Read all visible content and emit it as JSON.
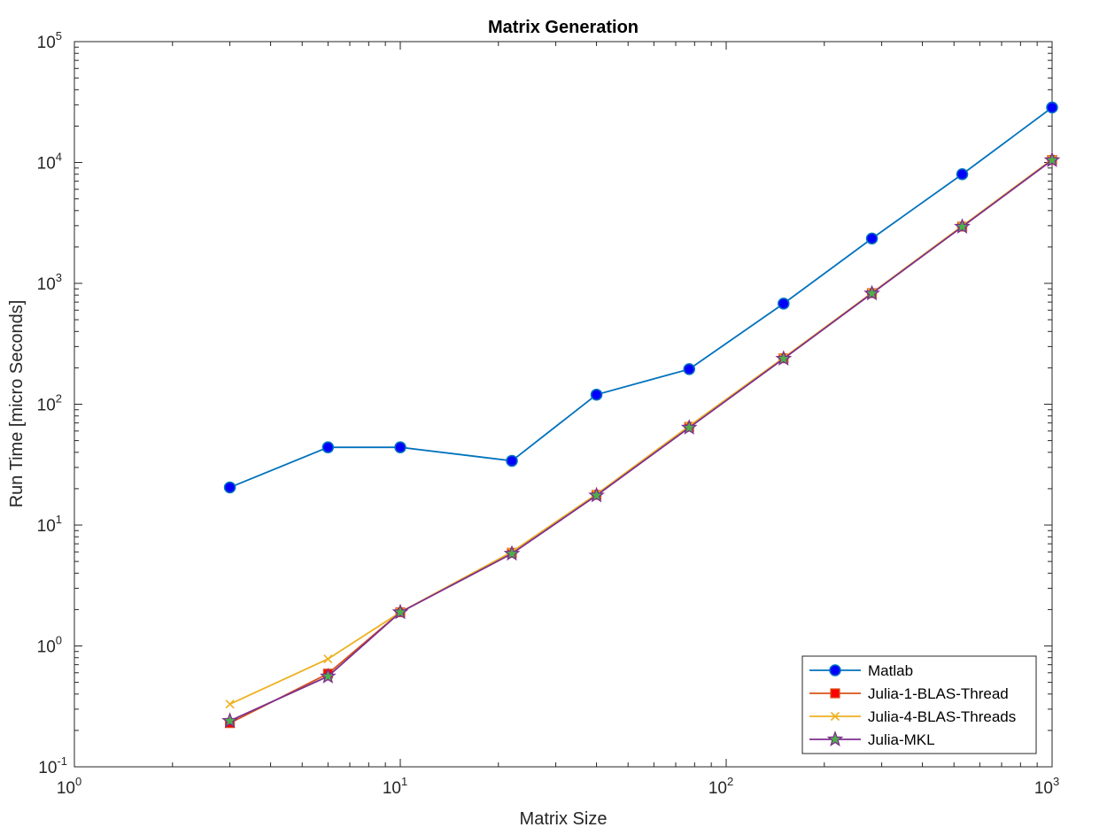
{
  "chart_data": {
    "type": "line",
    "title": "Matrix Generation",
    "xlabel": "Matrix Size",
    "ylabel": "Run Time  [micro Seconds]",
    "xscale": "log",
    "yscale": "log",
    "xlim": [
      1,
      1000
    ],
    "ylim": [
      0.1,
      100000
    ],
    "x_ticks": [
      {
        "value": 1,
        "base": "10",
        "exp": "0"
      },
      {
        "value": 10,
        "base": "10",
        "exp": "1"
      },
      {
        "value": 100,
        "base": "10",
        "exp": "2"
      },
      {
        "value": 1000,
        "base": "10",
        "exp": "3"
      }
    ],
    "y_ticks": [
      {
        "value": 0.1,
        "base": "10",
        "exp": "-1"
      },
      {
        "value": 1,
        "base": "10",
        "exp": "0"
      },
      {
        "value": 10,
        "base": "10",
        "exp": "1"
      },
      {
        "value": 100,
        "base": "10",
        "exp": "2"
      },
      {
        "value": 1000,
        "base": "10",
        "exp": "3"
      },
      {
        "value": 10000,
        "base": "10",
        "exp": "4"
      },
      {
        "value": 100000,
        "base": "10",
        "exp": "5"
      }
    ],
    "grid": false,
    "legend_position": "bottom-right",
    "x": [
      3,
      6,
      10,
      22,
      40,
      77,
      150,
      280,
      530,
      1000
    ],
    "series": [
      {
        "name": "Matlab",
        "color": "#0072BD",
        "marker": "circle",
        "marker_face": "#0000ff",
        "values": [
          20.5,
          44,
          44,
          34,
          120,
          195,
          680,
          2350,
          8000,
          28500
        ]
      },
      {
        "name": "Julia-1-BLAS-Thread",
        "color": "#D95319",
        "marker": "square",
        "marker_face": "#ff0000",
        "values": [
          0.23,
          0.59,
          1.9,
          5.9,
          17.8,
          65,
          240,
          830,
          2950,
          10500
        ]
      },
      {
        "name": "Julia-4-BLAS-Threads",
        "color": "#EDB120",
        "marker": "x",
        "marker_face": "none",
        "values": [
          0.33,
          0.78,
          1.9,
          6.0,
          18.0,
          66,
          242,
          835,
          2980,
          10600
        ]
      },
      {
        "name": "Julia-MKL",
        "color": "#7E2F8E",
        "marker": "star",
        "marker_face": "#4daf4a",
        "values": [
          0.24,
          0.56,
          1.9,
          5.8,
          17.6,
          64,
          238,
          825,
          2940,
          10450
        ]
      }
    ]
  }
}
